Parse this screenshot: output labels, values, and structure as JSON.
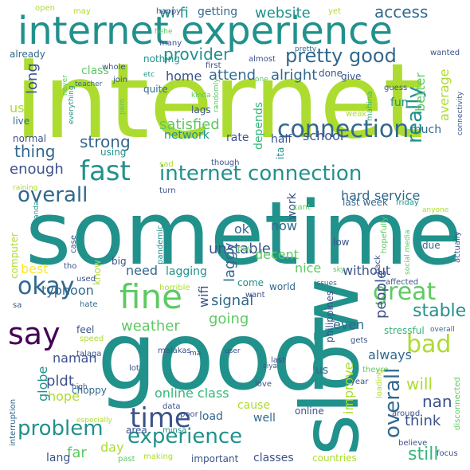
{
  "palette": {
    "background": "#ffffff",
    "dark_purple": "#440154",
    "indigo": "#3b528b",
    "blue": "#31688e",
    "teal": "#21918c",
    "green_teal": "#35b779",
    "green": "#5ec962",
    "lime": "#addc30",
    "yellow": "#fde725"
  },
  "words": [
    {
      "text": "internet"
    },
    {
      "text": "sometime"
    },
    {
      "text": "good"
    },
    {
      "text": "slow"
    },
    {
      "text": "internet experience"
    },
    {
      "text": "fine"
    },
    {
      "text": "connection"
    },
    {
      "text": "fast"
    },
    {
      "text": "internet connection"
    },
    {
      "text": "time"
    },
    {
      "text": "say"
    },
    {
      "text": "great"
    },
    {
      "text": "okay"
    },
    {
      "text": "experience"
    },
    {
      "text": "problem"
    },
    {
      "text": "bad"
    },
    {
      "text": "overall"
    },
    {
      "text": "overall"
    },
    {
      "text": "overall"
    },
    {
      "text": "pretty good"
    },
    {
      "text": "pretty"
    },
    {
      "text": "really"
    },
    {
      "text": "stable"
    },
    {
      "text": "access"
    },
    {
      "text": "website"
    },
    {
      "text": "wi fi"
    },
    {
      "text": "getting"
    },
    {
      "text": "provider"
    },
    {
      "text": "strong"
    },
    {
      "text": "satisfied"
    },
    {
      "text": "alright"
    },
    {
      "text": "attend"
    },
    {
      "text": "home"
    },
    {
      "text": "class"
    },
    {
      "text": "long"
    },
    {
      "text": "average"
    },
    {
      "text": "better"
    },
    {
      "text": "use"
    },
    {
      "text": "thing"
    },
    {
      "text": "enough"
    },
    {
      "text": "network"
    },
    {
      "text": "rate"
    },
    {
      "text": "depends"
    },
    {
      "text": "half"
    },
    {
      "text": "school"
    },
    {
      "text": "much"
    },
    {
      "text": "fun"
    },
    {
      "text": "hard"
    },
    {
      "text": "service"
    },
    {
      "text": "last week"
    },
    {
      "text": "friday"
    },
    {
      "text": "unstable"
    },
    {
      "text": "need"
    },
    {
      "text": "lagging"
    },
    {
      "text": "signal"
    },
    {
      "text": "nice"
    },
    {
      "text": "without"
    },
    {
      "text": "weather"
    },
    {
      "text": "going"
    },
    {
      "text": "typhoon"
    },
    {
      "text": "wifi"
    },
    {
      "text": "laggy"
    },
    {
      "text": "decent"
    },
    {
      "text": "ok"
    },
    {
      "text": "now"
    },
    {
      "text": "work"
    },
    {
      "text": "people"
    },
    {
      "text": "even"
    },
    {
      "text": "will"
    },
    {
      "text": "think"
    },
    {
      "text": "nan"
    },
    {
      "text": "still"
    },
    {
      "text": "always"
    },
    {
      "text": "hope"
    },
    {
      "text": "naman"
    },
    {
      "text": "globe"
    },
    {
      "text": "pldt"
    },
    {
      "text": "online class"
    },
    {
      "text": "cause"
    },
    {
      "text": "well"
    },
    {
      "text": "load"
    },
    {
      "text": "day"
    },
    {
      "text": "far"
    },
    {
      "text": "lang"
    },
    {
      "text": "area"
    },
    {
      "text": "classes"
    },
    {
      "text": "countries"
    },
    {
      "text": "important"
    },
    {
      "text": "improve"
    },
    {
      "text": "philippines"
    },
    {
      "text": "us"
    },
    {
      "text": "online"
    },
    {
      "text": "best"
    },
    {
      "text": "computer"
    },
    {
      "text": "know"
    },
    {
      "text": "feel"
    },
    {
      "text": "hate"
    },
    {
      "text": "speed"
    },
    {
      "text": "talaga"
    },
    {
      "text": "choppy"
    },
    {
      "text": "high"
    },
    {
      "text": "interruption"
    },
    {
      "text": "especially"
    },
    {
      "text": "data"
    },
    {
      "text": "poor"
    },
    {
      "text": "minsa"
    },
    {
      "text": "making"
    },
    {
      "text": "past"
    },
    {
      "text": "believe"
    },
    {
      "text": "focus"
    },
    {
      "text": "around"
    },
    {
      "text": "disconnected"
    },
    {
      "text": "loading"
    },
    {
      "text": "theyre"
    },
    {
      "text": "year"
    },
    {
      "text": "gets"
    },
    {
      "text": "stressful"
    },
    {
      "text": "affected"
    },
    {
      "text": "back"
    },
    {
      "text": "issues"
    },
    {
      "text": "sky"
    },
    {
      "text": "world"
    },
    {
      "text": "come"
    },
    {
      "text": "want"
    },
    {
      "text": "due"
    },
    {
      "text": "low"
    },
    {
      "text": "actually"
    },
    {
      "text": "social media"
    },
    {
      "text": "hopefully"
    },
    {
      "text": "pay"
    },
    {
      "text": "pandemic"
    },
    {
      "text": "horrible"
    },
    {
      "text": "big"
    },
    {
      "text": "case"
    },
    {
      "text": "tho"
    },
    {
      "text": "used"
    },
    {
      "text": "sa"
    },
    {
      "text": "maganda"
    },
    {
      "text": "raining"
    },
    {
      "text": "normal"
    },
    {
      "text": "live"
    },
    {
      "text": "everything"
    },
    {
      "text": "never"
    },
    {
      "text": "teacher"
    },
    {
      "text": "join"
    },
    {
      "text": "etc"
    },
    {
      "text": "pero"
    },
    {
      "text": "quite"
    },
    {
      "text": "nothing"
    },
    {
      "text": "whole"
    },
    {
      "text": "already"
    },
    {
      "text": "using"
    },
    {
      "text": "sad"
    },
    {
      "text": "turn"
    },
    {
      "text": "though"
    },
    {
      "text": "ita"
    },
    {
      "text": "cant"
    },
    {
      "text": "anyone"
    },
    {
      "text": "lags"
    },
    {
      "text": "kinda"
    },
    {
      "text": "randomly"
    },
    {
      "text": "first"
    },
    {
      "text": "almost"
    },
    {
      "text": "one"
    },
    {
      "text": "done"
    },
    {
      "text": "give"
    },
    {
      "text": "weak"
    },
    {
      "text": "mahina"
    },
    {
      "text": "guess"
    },
    {
      "text": "connectivity"
    },
    {
      "text": "wanted"
    },
    {
      "text": "open"
    },
    {
      "text": "may"
    },
    {
      "text": "happy"
    },
    {
      "text": "hehe"
    },
    {
      "text": "many"
    },
    {
      "text": "yet"
    },
    {
      "text": "malakas"
    },
    {
      "text": "ma"
    },
    {
      "text": "user"
    },
    {
      "text": "siya"
    },
    {
      "text": "last"
    },
    {
      "text": "love"
    },
    {
      "text": "lot"
    }
  ]
}
